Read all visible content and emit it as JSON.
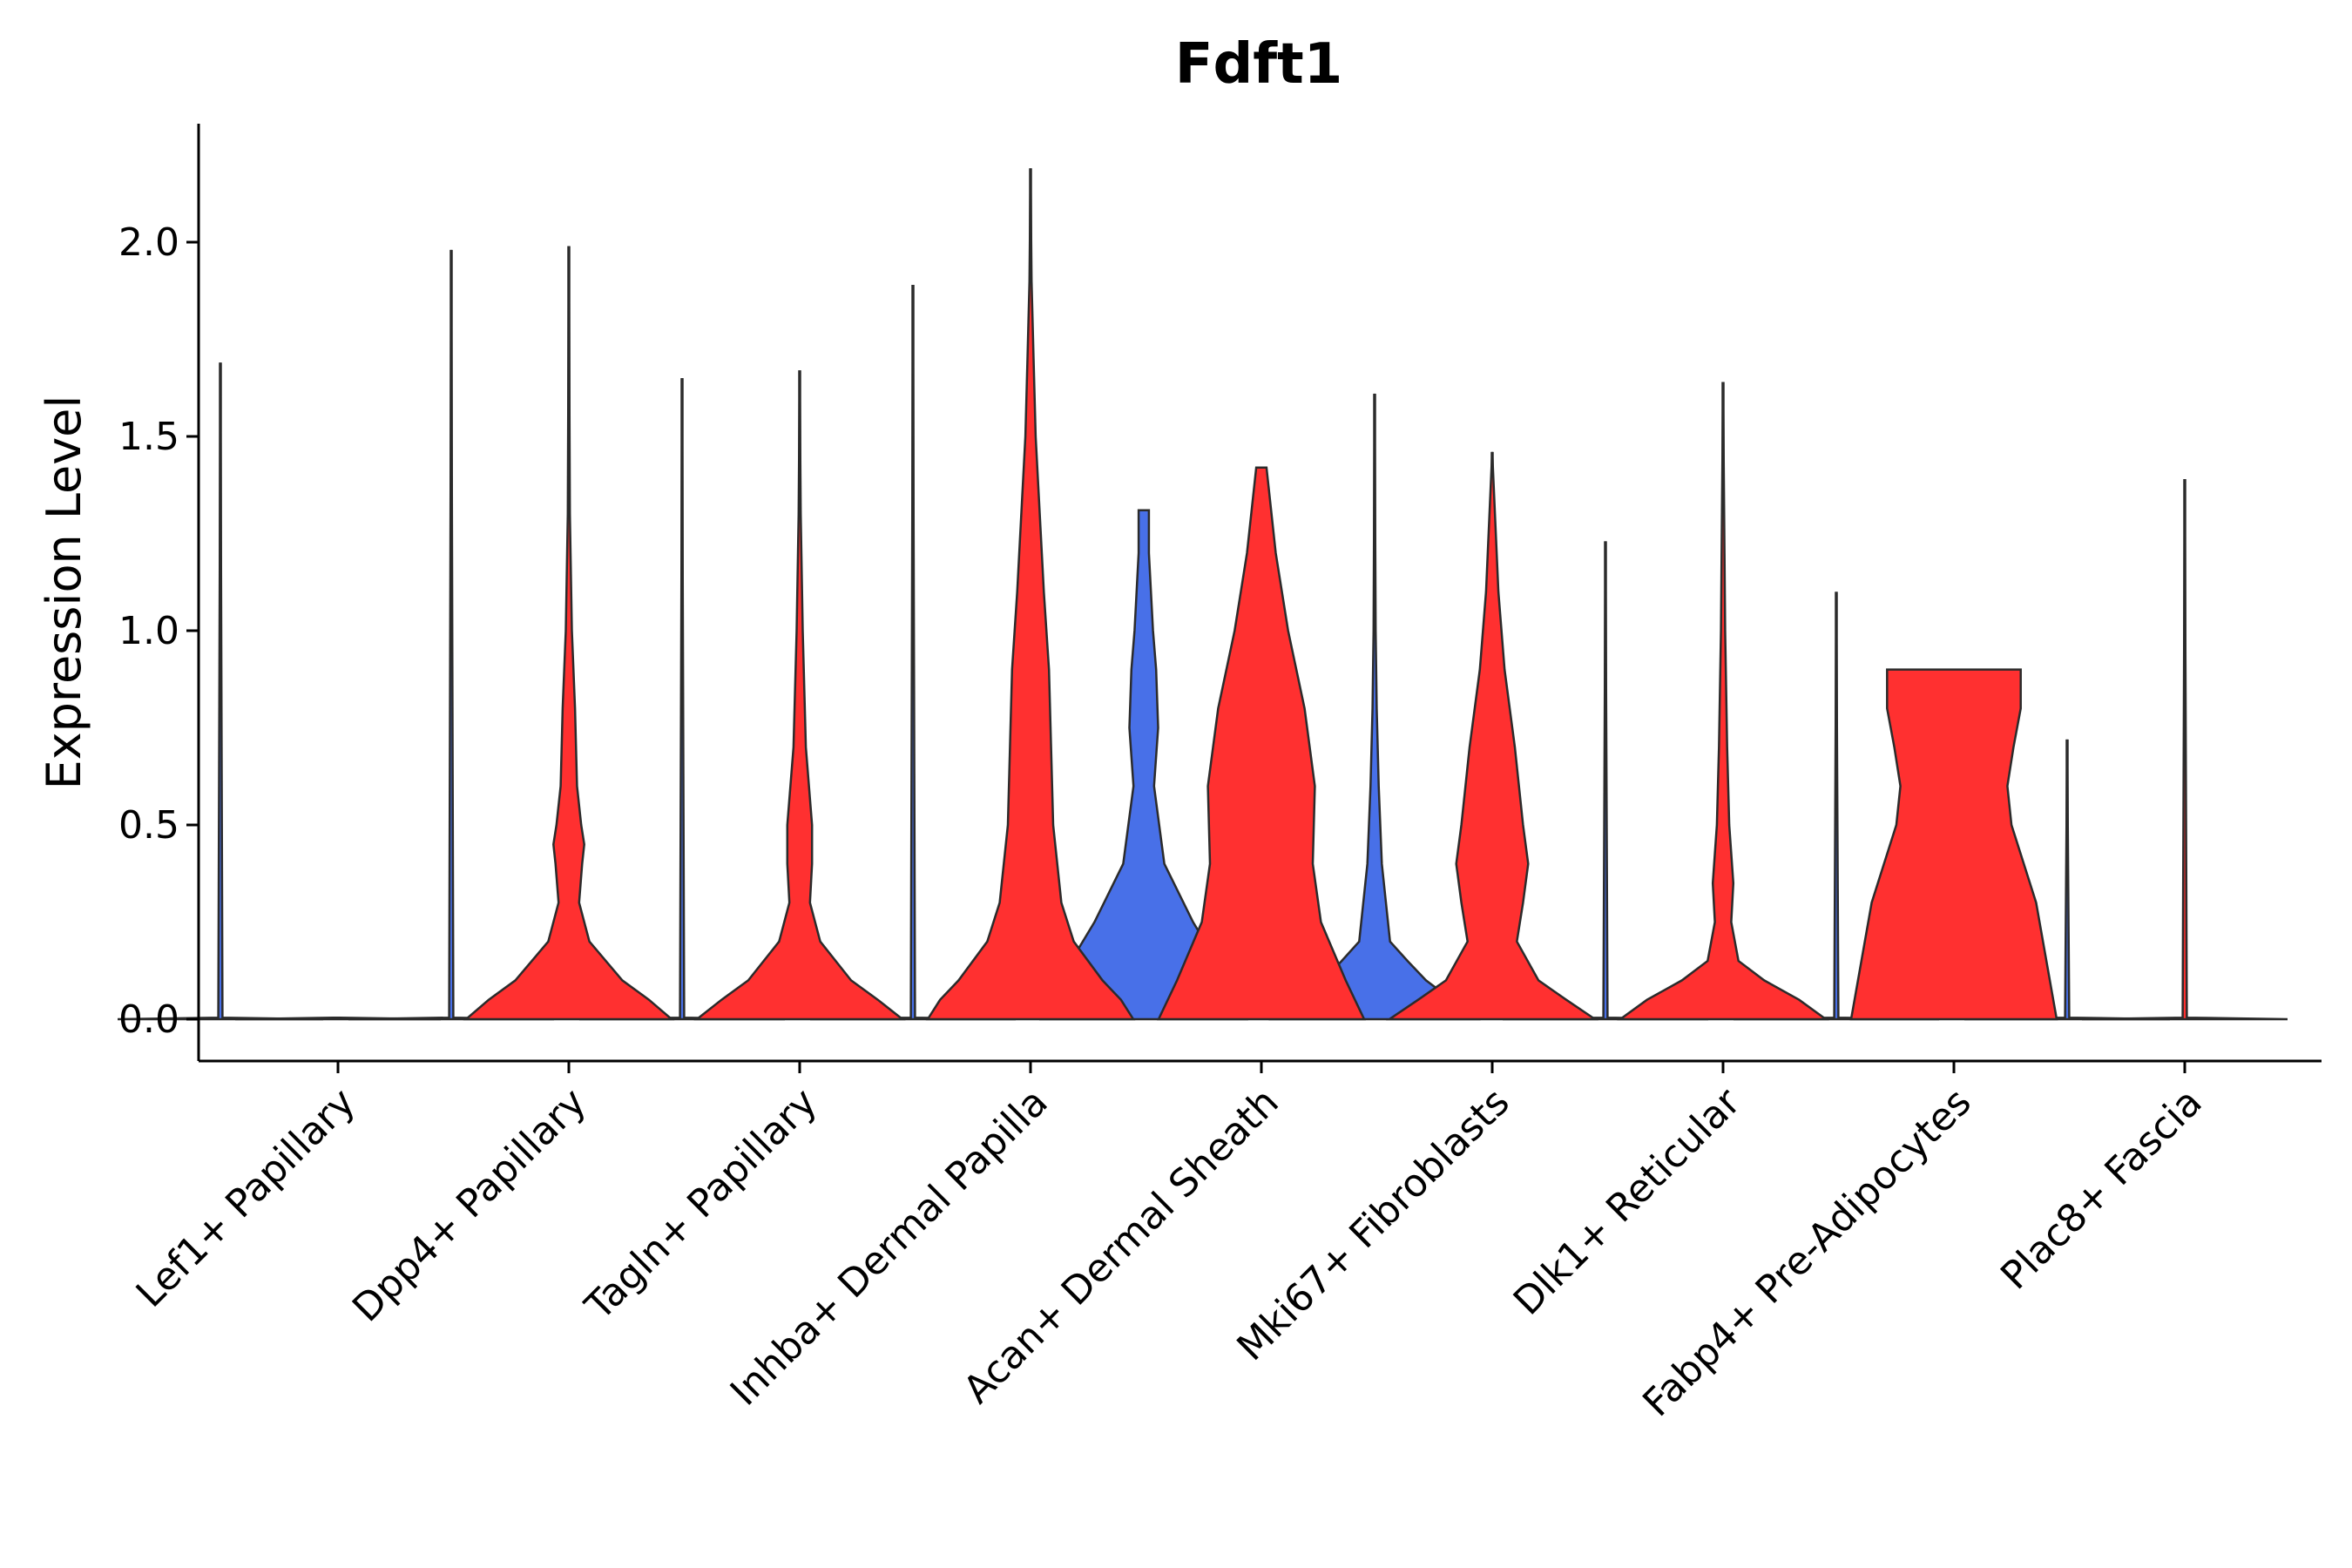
{
  "chart_data": {
    "type": "violin",
    "title": "Fdft1",
    "xlabel": "",
    "ylabel": "Expression Level",
    "ylim": [
      -0.11,
      2.3
    ],
    "yticks": [
      0.0,
      0.5,
      1.0,
      1.5,
      2.0
    ],
    "ytick_labels": [
      "0.0",
      "0.5",
      "1.0",
      "1.5",
      "2.0"
    ],
    "legend": "none",
    "colors": {
      "group_a": "#4870e8",
      "group_b": "#ff3030",
      "outline": "#2b2b2b"
    },
    "categories": [
      "Lef1+ Papillary",
      "Dpp4+ Papillary",
      "Tagln+ Papillary",
      "Inhba+ Dermal Papilla",
      "Acan+ Dermal Sheath",
      "Mki67+ Fibroblasts",
      "Dlk1+ Reticular",
      "Fabp4+ Pre-Adipocytes",
      "Plac8+ Fascia"
    ],
    "series": [
      {
        "name": "group_a",
        "color": "#4870e8",
        "violins": [
          {
            "category": "Lef1+ Papillary",
            "max": 1.69,
            "profile": [
              [
                0,
                1.0
              ],
              [
                0.004,
                0.02
              ],
              [
                1.69,
                0.0
              ]
            ]
          },
          {
            "category": "Dpp4+ Papillary",
            "max": 1.98,
            "profile": [
              [
                0,
                1.0
              ],
              [
                0.004,
                0.02
              ],
              [
                1.98,
                0.0
              ]
            ]
          },
          {
            "category": "Tagln+ Papillary",
            "max": 1.65,
            "profile": [
              [
                0,
                1.0
              ],
              [
                0.004,
                0.02
              ],
              [
                1.65,
                0.0
              ]
            ]
          },
          {
            "category": "Inhba+ Dermal Papilla",
            "max": 1.89,
            "profile": [
              [
                0,
                1.0
              ],
              [
                0.004,
                0.02
              ],
              [
                1.89,
                0.0
              ]
            ]
          },
          {
            "category": "Acan+ Dermal Sheath",
            "max": 1.31,
            "profile": [
              [
                0,
                1.0
              ],
              [
                0.1,
                0.82
              ],
              [
                0.25,
                0.48
              ],
              [
                0.4,
                0.2
              ],
              [
                0.6,
                0.1
              ],
              [
                0.75,
                0.14
              ],
              [
                0.9,
                0.12
              ],
              [
                1.0,
                0.09
              ],
              [
                1.2,
                0.05
              ],
              [
                1.31,
                0.05
              ]
            ]
          },
          {
            "category": "Mki67+ Fibroblasts",
            "max": 1.61,
            "profile": [
              [
                0,
                1.0
              ],
              [
                0.05,
                0.75
              ],
              [
                0.1,
                0.5
              ],
              [
                0.15,
                0.32
              ],
              [
                0.2,
                0.15
              ],
              [
                0.4,
                0.07
              ],
              [
                0.6,
                0.04
              ],
              [
                0.8,
                0.02
              ],
              [
                1.0,
                0.01
              ],
              [
                1.61,
                0.0
              ]
            ]
          },
          {
            "category": "Dlk1+ Reticular",
            "max": 1.23,
            "profile": [
              [
                0,
                1.0
              ],
              [
                0.004,
                0.02
              ],
              [
                1.23,
                0.0
              ]
            ]
          },
          {
            "category": "Fabp4+ Pre-Adipocytes",
            "max": 1.1,
            "profile": [
              [
                0,
                1.0
              ],
              [
                0.004,
                0.02
              ],
              [
                1.1,
                0.0
              ]
            ]
          },
          {
            "category": "Plac8+ Fascia",
            "max": 0.72,
            "profile": [
              [
                0,
                1.0
              ],
              [
                0.004,
                0.02
              ],
              [
                0.72,
                0.0
              ]
            ]
          }
        ]
      },
      {
        "name": "group_b",
        "color": "#ff3030",
        "violins": [
          {
            "category": "Lef1+ Papillary",
            "max": 0.0,
            "profile": [
              [
                0,
                1.0
              ],
              [
                0.004,
                0.02
              ]
            ]
          },
          {
            "category": "Dpp4+ Papillary",
            "max": 1.99,
            "profile": [
              [
                0,
                1.0
              ],
              [
                0.05,
                0.78
              ],
              [
                0.1,
                0.52
              ],
              [
                0.2,
                0.2
              ],
              [
                0.3,
                0.1
              ],
              [
                0.4,
                0.13
              ],
              [
                0.45,
                0.15
              ],
              [
                0.5,
                0.12
              ],
              [
                0.6,
                0.08
              ],
              [
                0.8,
                0.06
              ],
              [
                1.0,
                0.03
              ],
              [
                1.3,
                0.01
              ],
              [
                1.99,
                0.0
              ]
            ]
          },
          {
            "category": "Tagln+ Papillary",
            "max": 1.67,
            "profile": [
              [
                0,
                1.0
              ],
              [
                0.05,
                0.76
              ],
              [
                0.1,
                0.5
              ],
              [
                0.2,
                0.2
              ],
              [
                0.3,
                0.1
              ],
              [
                0.4,
                0.12
              ],
              [
                0.5,
                0.12
              ],
              [
                0.7,
                0.06
              ],
              [
                1.0,
                0.03
              ],
              [
                1.3,
                0.01
              ],
              [
                1.67,
                0.0
              ]
            ]
          },
          {
            "category": "Inhba+ Dermal Papilla",
            "max": 2.19,
            "profile": [
              [
                0,
                1.0
              ],
              [
                0.05,
                0.88
              ],
              [
                0.1,
                0.7
              ],
              [
                0.2,
                0.42
              ],
              [
                0.3,
                0.3
              ],
              [
                0.5,
                0.22
              ],
              [
                0.7,
                0.2
              ],
              [
                0.9,
                0.18
              ],
              [
                1.1,
                0.13
              ],
              [
                1.3,
                0.09
              ],
              [
                1.5,
                0.05
              ],
              [
                1.7,
                0.03
              ],
              [
                1.9,
                0.01
              ],
              [
                2.19,
                0.0
              ]
            ]
          },
          {
            "category": "Acan+ Dermal Sheath",
            "max": 1.42,
            "profile": [
              [
                0,
                1.0
              ],
              [
                0.1,
                0.82
              ],
              [
                0.25,
                0.58
              ],
              [
                0.4,
                0.5
              ],
              [
                0.6,
                0.52
              ],
              [
                0.8,
                0.42
              ],
              [
                1.0,
                0.26
              ],
              [
                1.2,
                0.14
              ],
              [
                1.42,
                0.05
              ]
            ]
          },
          {
            "category": "Mki67+ Fibroblasts",
            "max": 1.46,
            "profile": [
              [
                0,
                1.0
              ],
              [
                0.05,
                0.72
              ],
              [
                0.1,
                0.45
              ],
              [
                0.2,
                0.24
              ],
              [
                0.3,
                0.3
              ],
              [
                0.4,
                0.35
              ],
              [
                0.5,
                0.3
              ],
              [
                0.7,
                0.22
              ],
              [
                0.9,
                0.12
              ],
              [
                1.1,
                0.06
              ],
              [
                1.46,
                0.0
              ]
            ]
          },
          {
            "category": "Dlk1+ Reticular",
            "max": 1.64,
            "profile": [
              [
                0,
                1.0
              ],
              [
                0.05,
                0.74
              ],
              [
                0.1,
                0.4
              ],
              [
                0.15,
                0.15
              ],
              [
                0.25,
                0.08
              ],
              [
                0.35,
                0.1
              ],
              [
                0.5,
                0.06
              ],
              [
                0.7,
                0.04
              ],
              [
                1.0,
                0.02
              ],
              [
                1.64,
                0.0
              ]
            ]
          },
          {
            "category": "Fabp4+ Pre-Adipocytes",
            "max": 0.9,
            "profile": [
              [
                0,
                1.0
              ],
              [
                0.15,
                0.9
              ],
              [
                0.3,
                0.8
              ],
              [
                0.5,
                0.56
              ],
              [
                0.6,
                0.52
              ],
              [
                0.7,
                0.58
              ],
              [
                0.8,
                0.65
              ],
              [
                0.9,
                0.65
              ]
            ]
          },
          {
            "category": "Plac8+ Fascia",
            "max": 1.39,
            "profile": [
              [
                0,
                1.0
              ],
              [
                0.004,
                0.02
              ],
              [
                1.39,
                0.0
              ]
            ]
          }
        ]
      }
    ]
  }
}
